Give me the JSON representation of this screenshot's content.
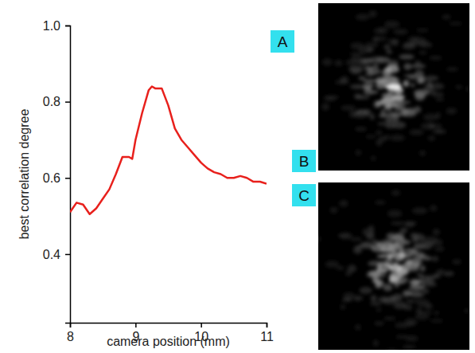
{
  "chart_data": {
    "type": "line",
    "annotations": [
      "A"
    ],
    "xlabel": "camera position (mm)",
    "ylabel": "best correlation degree",
    "x": [
      8.0,
      8.1,
      8.2,
      8.3,
      8.4,
      8.5,
      8.6,
      8.7,
      8.8,
      8.9,
      8.95,
      9.0,
      9.1,
      9.2,
      9.25,
      9.3,
      9.4,
      9.5,
      9.6,
      9.7,
      9.8,
      9.9,
      10.0,
      10.1,
      10.2,
      10.3,
      10.4,
      10.5,
      10.6,
      10.7,
      10.8,
      10.9,
      11.0
    ],
    "values": [
      0.51,
      0.535,
      0.53,
      0.505,
      0.52,
      0.545,
      0.57,
      0.61,
      0.655,
      0.655,
      0.65,
      0.7,
      0.77,
      0.83,
      0.84,
      0.835,
      0.835,
      0.79,
      0.73,
      0.7,
      0.68,
      0.66,
      0.64,
      0.625,
      0.615,
      0.61,
      0.6,
      0.6,
      0.605,
      0.6,
      0.59,
      0.59,
      0.585
    ],
    "color": "#e8201c",
    "xlim": [
      8,
      11
    ],
    "xticks": [
      8,
      9,
      10,
      11
    ],
    "ylim": [
      0.22,
      1.0
    ],
    "yticks": [
      {
        "value": 0.4,
        "label": "0.4"
      },
      {
        "value": 0.6,
        "label": "0.6"
      },
      {
        "value": 0.8,
        "label": "0.8"
      },
      {
        "value": 1.0,
        "label": "1.0"
      }
    ],
    "grid": false
  },
  "images": [
    {
      "label": "B"
    },
    {
      "label": "C"
    }
  ]
}
